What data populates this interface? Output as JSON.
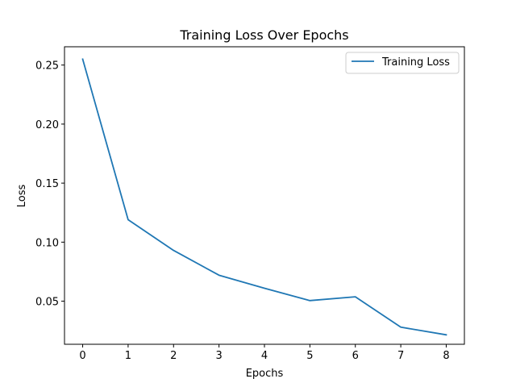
{
  "chart_data": {
    "type": "line",
    "title": "Training Loss Over Epochs",
    "xlabel": "Epochs",
    "ylabel": "Loss",
    "xlim": [
      -0.4,
      8.4
    ],
    "ylim": [
      0.0135,
      0.2655
    ],
    "x_ticks": [
      0,
      1,
      2,
      3,
      4,
      5,
      6,
      7,
      8
    ],
    "x_tick_labels": [
      "0",
      "1",
      "2",
      "3",
      "4",
      "5",
      "6",
      "7",
      "8"
    ],
    "y_ticks": [
      0.05,
      0.1,
      0.15,
      0.2,
      0.25
    ],
    "y_tick_labels": [
      "0.05",
      "0.10",
      "0.15",
      "0.20",
      "0.25"
    ],
    "grid": false,
    "legend_position": "top-right",
    "series": [
      {
        "name": "Training Loss",
        "color": "#1f77b4",
        "x": [
          0,
          1,
          2,
          3,
          4,
          5,
          6,
          7,
          8
        ],
        "values": [
          0.255,
          0.119,
          0.093,
          0.072,
          0.061,
          0.0505,
          0.0537,
          0.028,
          0.0215
        ]
      }
    ]
  }
}
